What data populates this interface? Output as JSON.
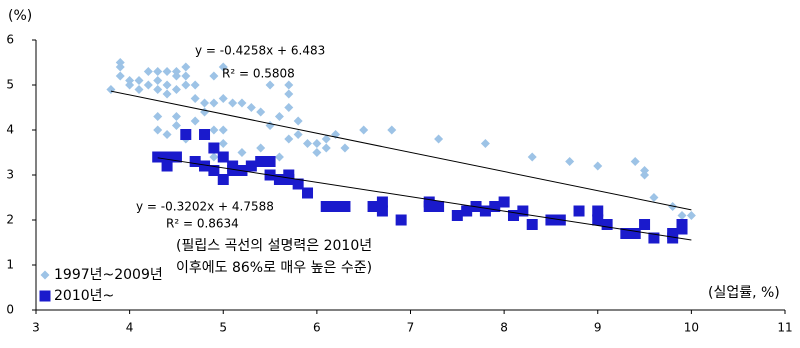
{
  "chart_data": {
    "type": "scatter",
    "y_label": "(%)",
    "x_label": "(실업률, %)",
    "xlim": [
      3,
      11
    ],
    "xticks": [
      3,
      4,
      5,
      6,
      7,
      8,
      9,
      10,
      11
    ],
    "ylim": [
      0,
      6
    ],
    "yticks": [
      0,
      1,
      2,
      3,
      4,
      5,
      6
    ],
    "legend_position": "lower left",
    "annotations": [
      "y = -0.4258x + 6.483",
      "R² = 0.5808",
      "y = -0.3202x + 4.7588",
      "R² = 0.8634",
      "(필립스 곡선의 설명력은 2010년",
      "이후에도 86%로 매우 높은 수준)"
    ],
    "series": [
      {
        "name": "1997년~2009년",
        "color": "#9dc3e6",
        "marker": "diamond",
        "x": [
          3.8,
          3.9,
          3.9,
          3.9,
          4.0,
          4.0,
          4.1,
          4.1,
          4.2,
          4.2,
          4.3,
          4.3,
          4.3,
          4.4,
          4.4,
          4.4,
          4.5,
          4.5,
          4.5,
          4.6,
          4.6,
          4.6,
          4.7,
          4.7,
          4.8,
          4.8,
          4.9,
          4.9,
          5.0,
          5.0,
          5.1,
          5.2,
          5.3,
          5.0,
          4.5,
          4.5,
          4.4,
          4.3,
          4.3,
          4.6,
          4.7,
          4.9,
          5.0,
          4.9,
          5.4,
          5.5,
          5.6,
          5.7,
          5.7,
          5.7,
          5.8,
          5.7,
          5.8,
          5.9,
          6.0,
          6.0,
          6.1,
          6.1,
          6.2,
          6.3,
          6.5,
          6.8,
          7.3,
          7.8,
          8.3,
          8.7,
          9.0,
          9.4,
          9.5,
          9.5,
          9.6,
          9.8,
          9.9,
          10.0,
          5.5,
          5.2,
          5.4,
          5.6
        ],
        "values": [
          4.9,
          5.5,
          5.4,
          5.2,
          5.0,
          5.1,
          5.1,
          4.9,
          5.3,
          5.0,
          5.3,
          5.1,
          4.9,
          5.3,
          5.0,
          4.8,
          5.3,
          5.2,
          4.9,
          5.4,
          5.2,
          5.0,
          5.0,
          4.7,
          4.6,
          4.4,
          5.2,
          4.6,
          5.4,
          4.7,
          4.6,
          4.6,
          4.5,
          4.0,
          4.3,
          4.1,
          3.9,
          4.3,
          4.0,
          3.8,
          4.2,
          4.0,
          3.7,
          3.4,
          4.4,
          4.1,
          4.3,
          5.0,
          4.8,
          4.5,
          4.2,
          3.8,
          3.9,
          3.7,
          3.5,
          3.7,
          3.6,
          3.8,
          3.9,
          3.6,
          4.0,
          4.0,
          3.8,
          3.7,
          3.4,
          3.3,
          3.2,
          3.3,
          3.1,
          3.0,
          2.5,
          2.3,
          2.1,
          2.1,
          5.0,
          3.5,
          3.6,
          3.4
        ],
        "trendline": {
          "slope": -0.4258,
          "intercept": 6.483,
          "x": [
            3.8,
            10.0
          ]
        }
      },
      {
        "name": "2010년~",
        "color": "#1a1acc",
        "marker": "square",
        "x": [
          4.3,
          4.4,
          4.4,
          4.5,
          4.6,
          4.7,
          4.8,
          4.8,
          4.9,
          4.9,
          5.0,
          5.0,
          5.1,
          5.1,
          5.2,
          5.3,
          5.4,
          5.5,
          5.5,
          5.6,
          5.7,
          5.7,
          5.8,
          5.9,
          6.1,
          6.2,
          6.3,
          6.6,
          6.7,
          6.7,
          6.9,
          7.2,
          7.2,
          7.3,
          7.5,
          7.6,
          7.7,
          7.8,
          7.9,
          8.0,
          8.1,
          8.2,
          8.3,
          8.5,
          8.6,
          8.8,
          9.0,
          9.0,
          9.1,
          9.3,
          9.4,
          9.5,
          9.6,
          9.8,
          9.8,
          9.9,
          9.9
        ],
        "values": [
          3.4,
          3.4,
          3.2,
          3.4,
          3.9,
          3.3,
          3.9,
          3.2,
          3.6,
          3.1,
          3.4,
          2.9,
          3.2,
          3.1,
          3.1,
          3.2,
          3.3,
          3.3,
          3.0,
          2.9,
          2.9,
          3.0,
          2.8,
          2.6,
          2.3,
          2.3,
          2.3,
          2.3,
          2.4,
          2.2,
          2.0,
          2.4,
          2.3,
          2.3,
          2.1,
          2.2,
          2.3,
          2.2,
          2.3,
          2.4,
          2.1,
          2.2,
          1.9,
          2.0,
          2.0,
          2.2,
          2.0,
          2.2,
          1.9,
          1.7,
          1.7,
          1.9,
          1.6,
          1.6,
          1.7,
          1.9,
          1.8
        ],
        "trendline": {
          "slope": -0.3202,
          "intercept": 4.7588,
          "x": [
            4.3,
            10.0
          ]
        }
      }
    ]
  }
}
